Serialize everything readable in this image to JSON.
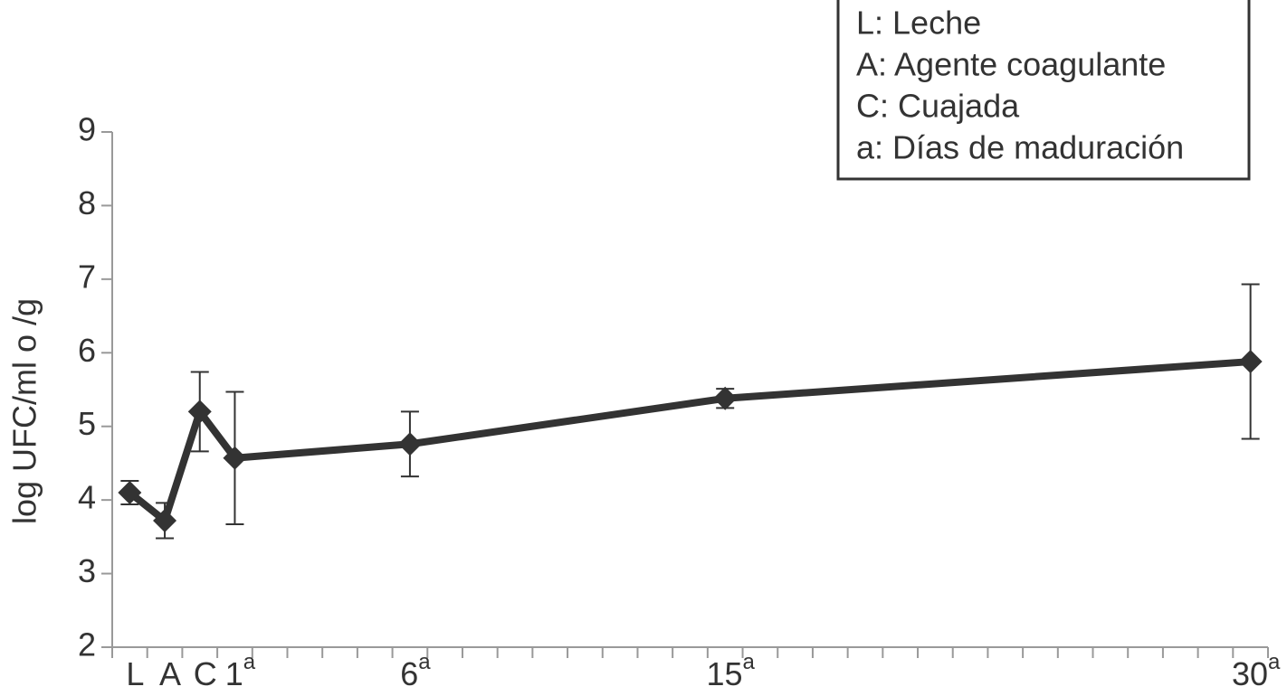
{
  "chart_data": {
    "type": "line",
    "y_label": "log UFC/ml o /g",
    "categories": [
      "L",
      "A",
      "C",
      "1",
      "6",
      "15",
      "30"
    ],
    "category_superscripts": [
      null,
      null,
      null,
      "a",
      "a",
      "a",
      "a"
    ],
    "series": [
      {
        "color": "#333333",
        "values": [
          4.1,
          3.72,
          5.2,
          4.57,
          4.76,
          5.38,
          5.88
        ],
        "errors": [
          0.16,
          0.24,
          0.54,
          0.9,
          0.44,
          0.13,
          1.05
        ]
      }
    ],
    "ylim": [
      2,
      9
    ],
    "yticks": [
      2,
      3,
      4,
      5,
      6,
      7,
      8,
      9
    ],
    "legend_notes": [
      "L: Leche",
      "A: Agente coagulante",
      "C: Cuajada",
      "a: Días de maduración"
    ]
  }
}
